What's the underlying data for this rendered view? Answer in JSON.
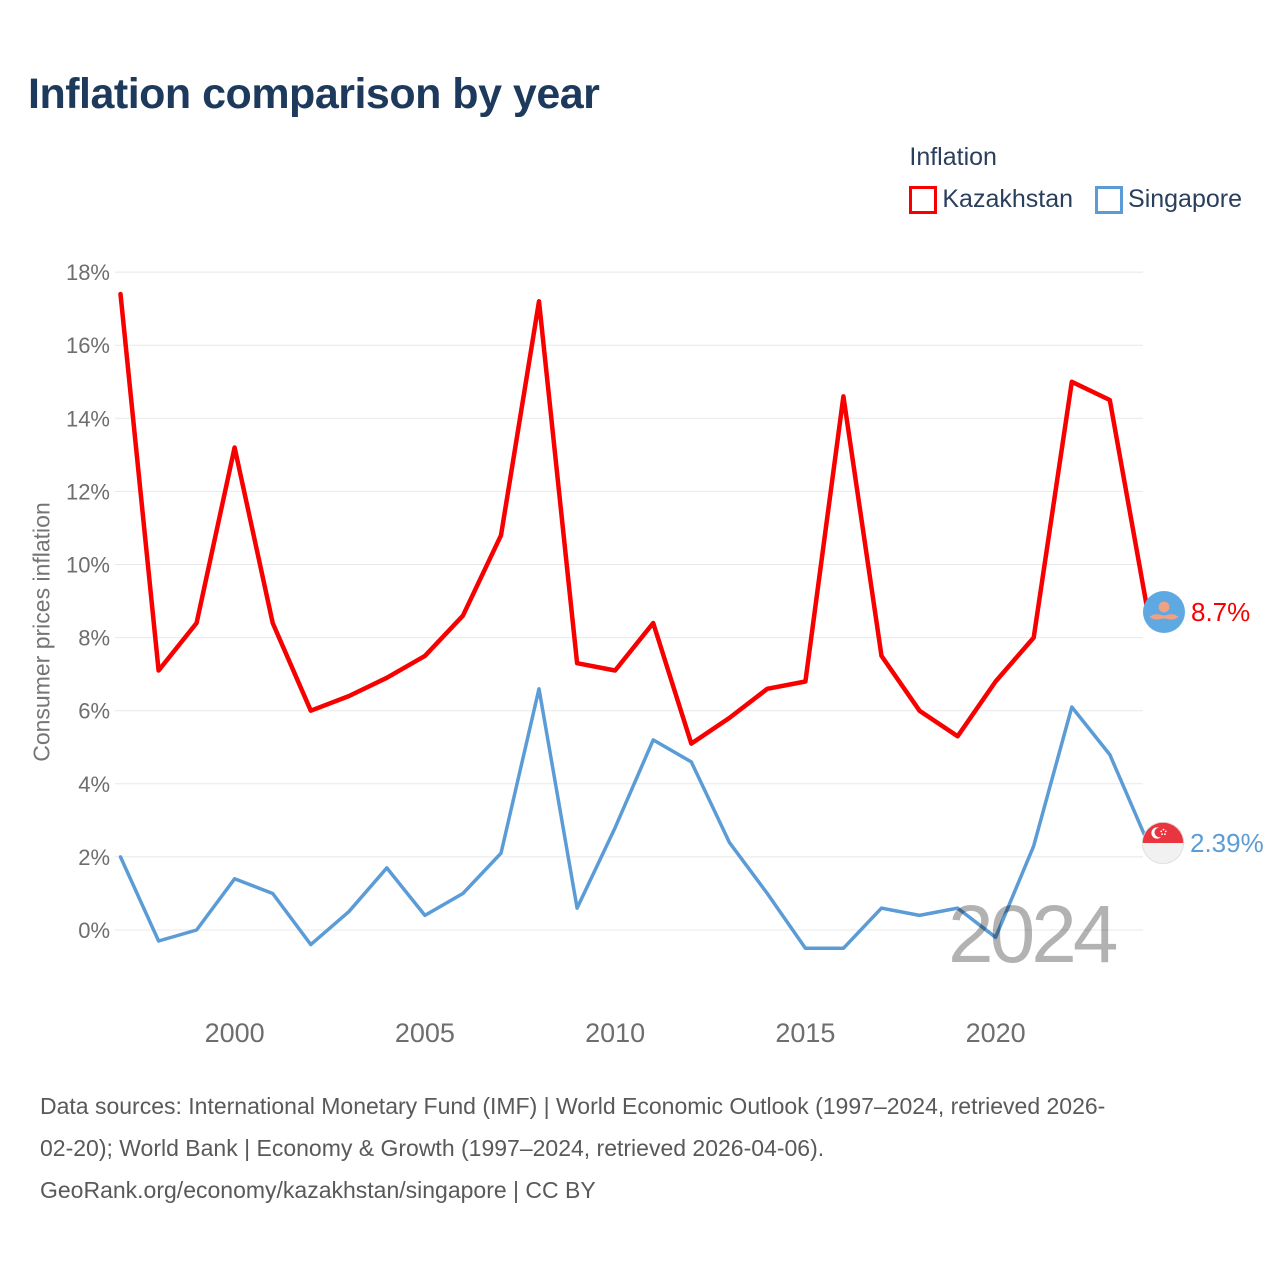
{
  "title": "Inflation comparison by year",
  "legend": {
    "title": "Inflation",
    "items": [
      {
        "label": "Kazakhstan",
        "color": "#f80000"
      },
      {
        "label": "Singapore",
        "color": "#5b9cd6"
      }
    ]
  },
  "watermark": "2024",
  "end_labels": {
    "kazakhstan": "8.7%",
    "singapore": "2.39%"
  },
  "footer": {
    "lines": [
      "Data sources: International Monetary Fund (IMF) | World Economic Outlook (1997–2024, retrieved 2026-",
      "02-20); World Bank | Economy & Growth (1997–2024, retrieved 2026-04-06).",
      "GeoRank.org/economy/kazakhstan/singapore | CC BY"
    ]
  },
  "chart_data": {
    "type": "line",
    "title": "Inflation comparison by year",
    "xlabel": "",
    "ylabel": "Consumer prices inflation",
    "x_range": [
      1997,
      2024
    ],
    "ylim": [
      -1,
      18.5
    ],
    "grid": "horizontal",
    "legend_position": "top-right",
    "background": "#ffffff",
    "gridline_color": "#e8e8e8",
    "tick_color": "#6e6e6e",
    "yticks": [
      {
        "value": 18,
        "label": "18%"
      },
      {
        "value": 16,
        "label": "16%"
      },
      {
        "value": 14,
        "label": "14%"
      },
      {
        "value": 12,
        "label": "12%"
      },
      {
        "value": 10,
        "label": "10%"
      },
      {
        "value": 8,
        "label": "8%"
      },
      {
        "value": 6,
        "label": "6%"
      },
      {
        "value": 4,
        "label": "4%"
      },
      {
        "value": 2,
        "label": "2%"
      },
      {
        "value": 0,
        "label": "0%"
      }
    ],
    "xticks": [
      {
        "value": 2000,
        "label": "2000"
      },
      {
        "value": 2005,
        "label": "2005"
      },
      {
        "value": 2010,
        "label": "2010"
      },
      {
        "value": 2015,
        "label": "2015"
      },
      {
        "value": 2020,
        "label": "2020"
      }
    ],
    "x": [
      1997,
      1998,
      1999,
      2000,
      2001,
      2002,
      2003,
      2004,
      2005,
      2006,
      2007,
      2008,
      2009,
      2010,
      2011,
      2012,
      2013,
      2014,
      2015,
      2016,
      2017,
      2018,
      2019,
      2020,
      2021,
      2022,
      2023,
      2024
    ],
    "series": [
      {
        "name": "Kazakhstan",
        "color": "#f80000",
        "line_width": 4.5,
        "values": [
          17.4,
          7.1,
          8.4,
          13.2,
          8.4,
          6.0,
          6.4,
          6.9,
          7.5,
          8.6,
          10.8,
          17.2,
          7.3,
          7.1,
          8.4,
          5.1,
          5.8,
          6.6,
          6.8,
          14.6,
          7.5,
          6.0,
          5.3,
          6.8,
          8.0,
          15.0,
          14.5,
          8.7
        ]
      },
      {
        "name": "Singapore",
        "color": "#5b9cd6",
        "line_width": 3.5,
        "values": [
          2.0,
          -0.3,
          0.0,
          1.4,
          1.0,
          -0.4,
          0.5,
          1.7,
          0.4,
          1.0,
          2.1,
          6.6,
          0.6,
          2.8,
          5.2,
          4.6,
          2.4,
          1.0,
          -0.5,
          -0.5,
          0.6,
          0.4,
          0.6,
          -0.2,
          2.3,
          6.1,
          4.8,
          2.39
        ]
      }
    ]
  }
}
